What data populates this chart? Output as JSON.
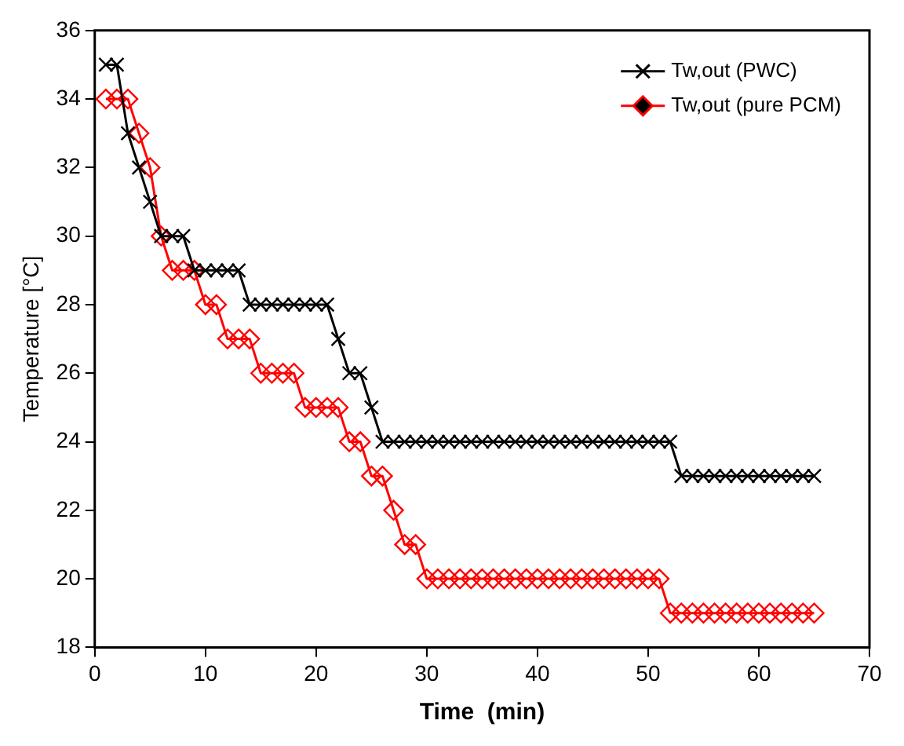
{
  "chart_data": {
    "type": "line",
    "xlabel": "Time  (min)",
    "ylabel": "Temperature [°C]",
    "x": [
      1,
      2,
      3,
      4,
      5,
      6,
      7,
      8,
      9,
      10,
      11,
      12,
      13,
      14,
      15,
      16,
      17,
      18,
      19,
      20,
      21,
      22,
      23,
      24,
      25,
      26,
      27,
      28,
      29,
      30,
      31,
      32,
      33,
      34,
      35,
      36,
      37,
      38,
      39,
      40,
      41,
      42,
      43,
      44,
      45,
      46,
      47,
      48,
      49,
      50,
      51,
      52,
      53,
      54,
      55,
      56,
      57,
      58,
      59,
      60,
      61,
      62,
      63,
      64,
      65
    ],
    "series": [
      {
        "name": "Tw,out (PWC)",
        "color": "#000000",
        "marker": "cross",
        "values": [
          35,
          35,
          33,
          32,
          31,
          30,
          30,
          30,
          29,
          29,
          29,
          29,
          29,
          28,
          28,
          28,
          28,
          28,
          28,
          28,
          28,
          27,
          26,
          26,
          25,
          24,
          24,
          24,
          24,
          24,
          24,
          24,
          24,
          24,
          24,
          24,
          24,
          24,
          24,
          24,
          24,
          24,
          24,
          24,
          24,
          24,
          24,
          24,
          24,
          24,
          24,
          24,
          23,
          23,
          23,
          23,
          23,
          23,
          23,
          23,
          23,
          23,
          23,
          23,
          23
        ]
      },
      {
        "name": "Tw,out (pure PCM)",
        "color": "#ff0000",
        "marker": "diamond",
        "values": [
          34,
          34,
          34,
          33,
          32,
          30,
          29,
          29,
          29,
          28,
          28,
          27,
          27,
          27,
          26,
          26,
          26,
          26,
          25,
          25,
          25,
          25,
          24,
          24,
          23,
          23,
          22,
          21,
          21,
          20,
          20,
          20,
          20,
          20,
          20,
          20,
          20,
          20,
          20,
          20,
          20,
          20,
          20,
          20,
          20,
          20,
          20,
          20,
          20,
          20,
          20,
          19,
          19,
          19,
          19,
          19,
          19,
          19,
          19,
          19,
          19,
          19,
          19,
          19,
          19
        ]
      }
    ],
    "xlim": [
      0,
      70
    ],
    "xticks": [
      0,
      10,
      20,
      30,
      40,
      50,
      60,
      70
    ],
    "ylim": [
      18,
      36
    ],
    "yticks": [
      18,
      20,
      22,
      24,
      26,
      28,
      30,
      32,
      34,
      36
    ],
    "grid": false,
    "legend": "top right",
    "line_style": "solid"
  }
}
